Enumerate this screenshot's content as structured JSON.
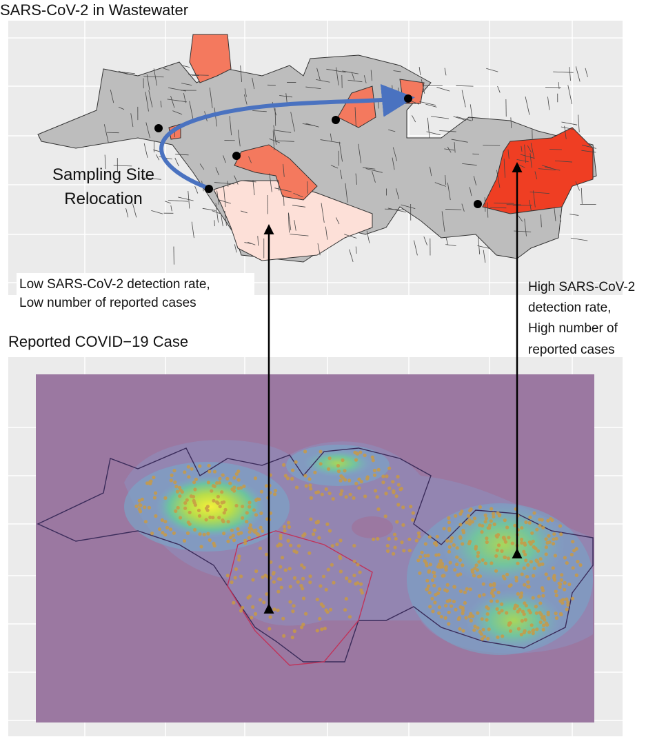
{
  "panels": [
    {
      "title": "SARS-CoV-2 in Wastewater"
    },
    {
      "title": "Reported COVID−19 Case"
    }
  ],
  "annotations": [
    {
      "lines": [
        "Sampling Site",
        "Relocation"
      ]
    },
    {
      "lines": [
        "Low SARS-CoV-2 detection rate,",
        "Low number of reported cases"
      ]
    },
    {
      "lines": [
        "High SARS-CoV-2",
        "detection rate,",
        "High number of",
        "reported cases"
      ]
    }
  ]
}
